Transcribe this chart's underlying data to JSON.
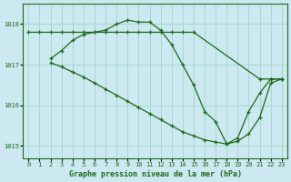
{
  "line1": {
    "x": [
      0,
      1,
      2,
      3,
      4,
      5,
      6,
      7,
      8,
      9,
      10,
      11,
      12,
      13,
      14,
      15,
      21,
      22,
      23
    ],
    "y": [
      1017.8,
      1017.8,
      1017.8,
      1017.8,
      1017.8,
      1017.8,
      1017.8,
      1017.8,
      1017.8,
      1017.8,
      1017.8,
      1017.8,
      1017.8,
      1017.8,
      1017.8,
      1017.8,
      1016.65,
      1016.65,
      1016.65
    ],
    "color": "#1a6b1a",
    "marker": "+"
  },
  "line2": {
    "x": [
      2,
      3,
      4,
      5,
      6,
      7,
      8,
      9,
      10,
      11,
      12,
      13,
      14,
      15,
      16,
      17,
      18,
      19,
      20,
      21,
      22,
      23
    ],
    "y": [
      1017.15,
      1017.35,
      1017.6,
      1017.75,
      1017.8,
      1017.85,
      1018.0,
      1018.1,
      1018.05,
      1018.05,
      1017.85,
      1017.5,
      1017.0,
      1016.5,
      1015.85,
      1015.6,
      1015.05,
      1015.2,
      1015.85,
      1016.3,
      1016.65,
      1016.65
    ],
    "color": "#1a6b1a",
    "marker": "+"
  },
  "line3": {
    "x": [
      2,
      3,
      4,
      5,
      6,
      7,
      8,
      9,
      10,
      11,
      12,
      13,
      14,
      15,
      16,
      17,
      18,
      19,
      20,
      21,
      22,
      23
    ],
    "y": [
      1017.05,
      1016.95,
      1016.82,
      1016.7,
      1016.55,
      1016.4,
      1016.25,
      1016.1,
      1015.95,
      1015.8,
      1015.65,
      1015.5,
      1015.35,
      1015.25,
      1015.15,
      1015.1,
      1015.05,
      1015.12,
      1015.3,
      1015.7,
      1016.55,
      1016.65
    ],
    "color": "#1a6b1a",
    "marker": "+"
  },
  "title": "Graphe pression niveau de la mer (hPa)",
  "background_color": "#cce8f0",
  "grid_color": "#a8d8cc",
  "line_color": "#1a6b1a",
  "ylim": [
    1014.7,
    1018.5
  ],
  "yticks": [
    1015,
    1016,
    1017,
    1018
  ],
  "xlim": [
    -0.5,
    23.5
  ],
  "xticks": [
    0,
    1,
    2,
    3,
    4,
    5,
    6,
    7,
    8,
    9,
    10,
    11,
    12,
    13,
    14,
    15,
    16,
    17,
    18,
    19,
    20,
    21,
    22,
    23
  ]
}
